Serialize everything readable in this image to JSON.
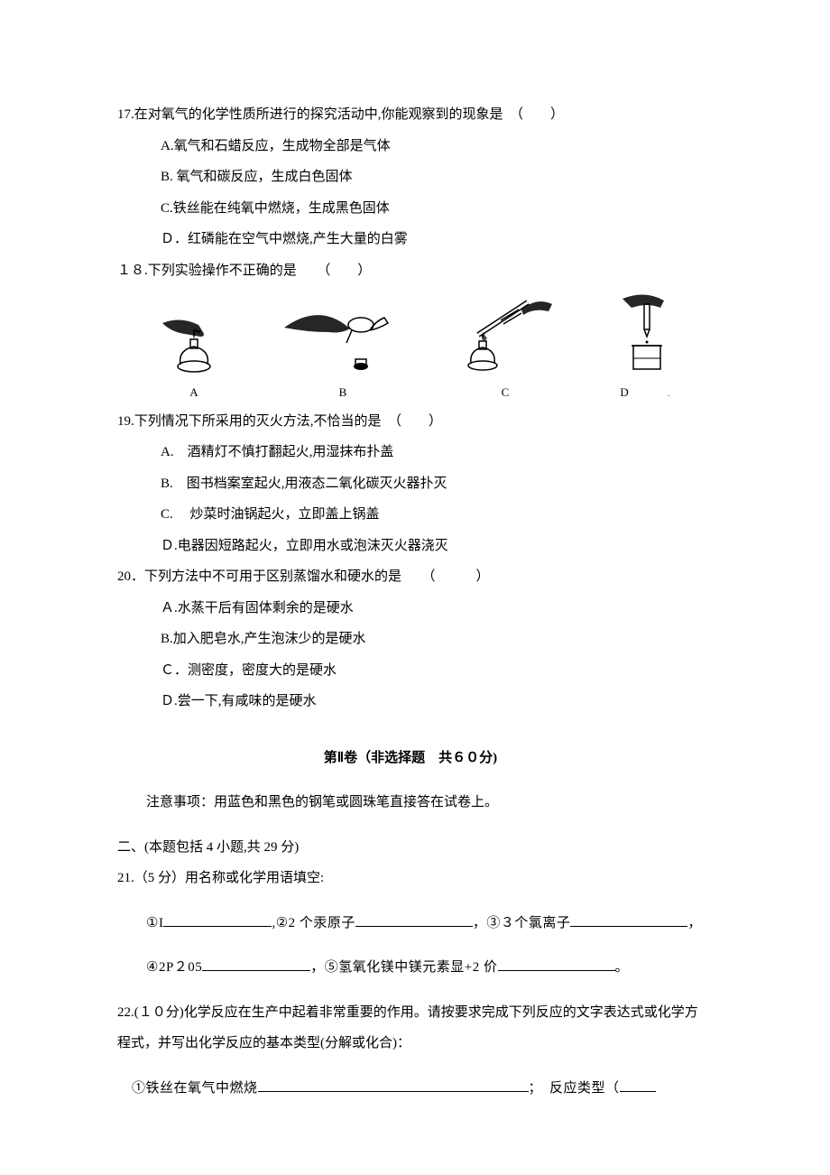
{
  "q17": {
    "stem": "17.在对氧气的化学性质所进行的探究活动中,你能观察到的现象是　（　　）",
    "A": "A.氧气和石蜡反应，生成物全部是气体",
    "B": "B. 氧气和碳反应，生成白色固体",
    "C": "C.铁丝能在纯氧中燃烧，生成黑色固体",
    "D": "Ｄ．红磷能在空气中燃烧,产生大量的白雾"
  },
  "q18": {
    "stem": "１８.下列实验操作不正确的是　　（　　）",
    "labels": {
      "A": "A",
      "B": "B",
      "C": "C",
      "D": "D"
    }
  },
  "q19": {
    "stem": "19.下列情况下所采用的灭火方法,不恰当的是　（　　）",
    "A": "A.　酒精灯不慎打翻起火,用湿抹布扑盖",
    "B": "B.　图书档案室起火,用液态二氧化碳灭火器扑灭",
    "C": "C. 　炒菜时油锅起火，立即盖上锅盖",
    "D": "Ｄ.电器因短路起火，立即用水或泡沫灭火器浇灭"
  },
  "q20": {
    "stem": "20．下列方法中不可用于区别蒸馏水和硬水的是　　（　　　）",
    "A": "Ａ.水蒸干后有固体剩余的是硬水",
    "B": "B.加入肥皂水,产生泡沫少的是硬水",
    "C": "Ｃ．测密度，密度大的是硬水",
    "D": "Ｄ.尝一下,有咸味的是硬水"
  },
  "section2": {
    "title": "第Ⅱ卷（非选择题　共６０分)",
    "notice": "注意事项：用蓝色和黑色的钢笔或圆珠笔直接答在试卷上。",
    "part_header": "二、(本题包括 4 小题,共 29 分)"
  },
  "q21": {
    "stem": "21.（5 分）用名称或化学用语填空:",
    "line1_a": "①I",
    "line1_b": ",②2 个汞原子",
    "line1_c": "，③３个氯离子",
    "line1_d": "，",
    "line2_a": "④2P２05",
    "line2_b": "，⑤氢氧化镁中镁元素显+2 价",
    "line2_c": "。"
  },
  "q22": {
    "stem": "22.(１０分)化学反应在生产中起着非常重要的作用。请按要求完成下列反应的文字表达式或化学方程式，并写出化学反应的基本类型(分解或化合)：",
    "line1_a": "①铁丝在氧气中燃烧",
    "line1_b": "；　反应类型（"
  },
  "style": {
    "blank_short": 120,
    "blank_mid": 130,
    "blank_long": 300
  }
}
